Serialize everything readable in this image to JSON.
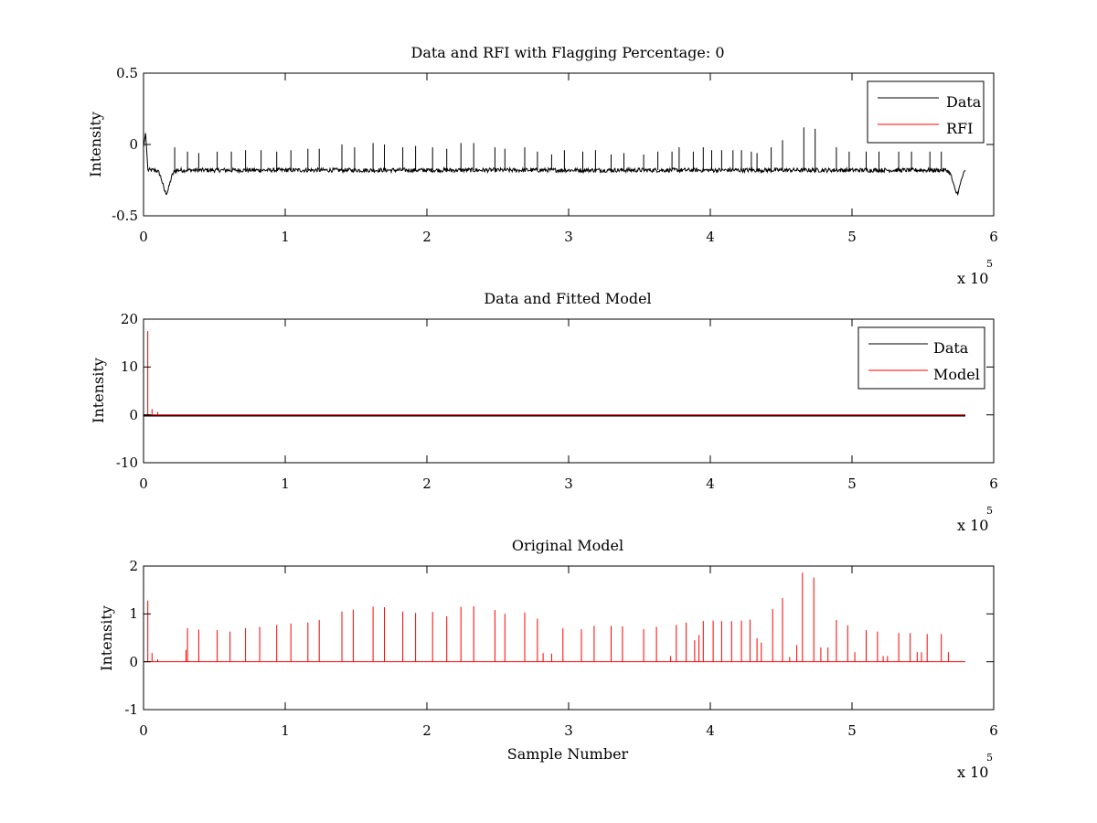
{
  "chart_data": [
    {
      "type": "line",
      "title": "Data and RFI with Flagging Percentage: 0",
      "xlabel": "",
      "ylabel": "Intensity",
      "xlim": [
        0,
        6
      ],
      "ylim": [
        -0.5,
        0.5
      ],
      "xticks": [
        0,
        1,
        2,
        3,
        4,
        5,
        6
      ],
      "yticks": [
        -0.5,
        0,
        0.5
      ],
      "xtick_labels": [
        "0",
        "1",
        "2",
        "3",
        "4",
        "5",
        "6"
      ],
      "ytick_labels": [
        "-0.5",
        "0",
        "0.5"
      ],
      "x_exponent": {
        "base": "x 10",
        "power": "5"
      },
      "grid": false,
      "legend_position": "top-right",
      "series": [
        {
          "name": "Data",
          "color": "#000000"
        },
        {
          "name": "RFI",
          "color": "#ff0000"
        }
      ],
      "data_profile": {
        "x_end": 5.8,
        "baseline": -0.18,
        "start_values": [
          [
            0,
            -0.02
          ],
          [
            0.015,
            0.08
          ],
          [
            0.03,
            -0.17
          ]
        ],
        "dips": [
          {
            "x": 0.16,
            "y": -0.34
          },
          {
            "x": 5.74,
            "y": -0.34
          }
        ],
        "spikes": [
          [
            0.22,
            -0.02
          ],
          [
            0.31,
            -0.05
          ],
          [
            0.39,
            -0.06
          ],
          [
            0.52,
            -0.05
          ],
          [
            0.62,
            -0.05
          ],
          [
            0.72,
            -0.04
          ],
          [
            0.83,
            -0.04
          ],
          [
            0.94,
            -0.05
          ],
          [
            1.04,
            -0.04
          ],
          [
            1.16,
            -0.03
          ],
          [
            1.24,
            -0.03
          ],
          [
            1.4,
            0.0
          ],
          [
            1.49,
            -0.02
          ],
          [
            1.62,
            0.01
          ],
          [
            1.7,
            0.0
          ],
          [
            1.83,
            -0.02
          ],
          [
            1.92,
            -0.01
          ],
          [
            2.04,
            -0.02
          ],
          [
            2.14,
            -0.03
          ],
          [
            2.24,
            0.01
          ],
          [
            2.33,
            0.01
          ],
          [
            2.48,
            -0.02
          ],
          [
            2.55,
            -0.03
          ],
          [
            2.69,
            -0.02
          ],
          [
            2.78,
            -0.05
          ],
          [
            2.88,
            -0.07
          ],
          [
            2.97,
            -0.04
          ],
          [
            3.1,
            -0.05
          ],
          [
            3.19,
            -0.04
          ],
          [
            3.3,
            -0.07
          ],
          [
            3.39,
            -0.06
          ],
          [
            3.53,
            -0.07
          ],
          [
            3.63,
            -0.05
          ],
          [
            3.73,
            -0.05
          ],
          [
            3.78,
            -0.02
          ],
          [
            3.88,
            -0.05
          ],
          [
            3.95,
            -0.02
          ],
          [
            4.01,
            -0.04
          ],
          [
            4.08,
            -0.04
          ],
          [
            4.16,
            -0.04
          ],
          [
            4.22,
            -0.04
          ],
          [
            4.29,
            -0.05
          ],
          [
            4.33,
            -0.06
          ],
          [
            4.43,
            -0.02
          ],
          [
            4.51,
            0.03
          ],
          [
            4.66,
            0.12
          ],
          [
            4.74,
            0.11
          ],
          [
            4.89,
            -0.02
          ],
          [
            4.98,
            -0.05
          ],
          [
            5.1,
            -0.05
          ],
          [
            5.19,
            -0.05
          ],
          [
            5.33,
            -0.05
          ],
          [
            5.42,
            -0.05
          ],
          [
            5.55,
            -0.05
          ],
          [
            5.63,
            -0.05
          ]
        ]
      }
    },
    {
      "type": "line",
      "title": "Data and Fitted Model",
      "xlabel": "",
      "ylabel": "Intensity",
      "xlim": [
        0,
        6
      ],
      "ylim": [
        -10,
        20
      ],
      "xticks": [
        0,
        1,
        2,
        3,
        4,
        5,
        6
      ],
      "yticks": [
        -10,
        0,
        10,
        20
      ],
      "xtick_labels": [
        "0",
        "1",
        "2",
        "3",
        "4",
        "5",
        "6"
      ],
      "ytick_labels": [
        "-10",
        "0",
        "10",
        "20"
      ],
      "x_exponent": {
        "base": "x 10",
        "power": "5"
      },
      "grid": false,
      "legend_position": "top-right",
      "series": [
        {
          "name": "Data",
          "color": "#000000"
        },
        {
          "name": "Model",
          "color": "#ff0000"
        }
      ],
      "data_profile": {
        "x_end": 5.8,
        "baseline": -0.2,
        "model_peak": {
          "x": 0.03,
          "y": 17.5
        },
        "model_small_peaks": [
          [
            0.06,
            1.2
          ],
          [
            0.1,
            0.6
          ]
        ]
      }
    },
    {
      "type": "line",
      "title": "Original Model",
      "xlabel": "Sample Number",
      "ylabel": "Intensity",
      "xlim": [
        0,
        6
      ],
      "ylim": [
        -1,
        2
      ],
      "xticks": [
        0,
        1,
        2,
        3,
        4,
        5,
        6
      ],
      "yticks": [
        -1,
        0,
        1,
        2
      ],
      "xtick_labels": [
        "0",
        "1",
        "2",
        "3",
        "4",
        "5",
        "6"
      ],
      "ytick_labels": [
        "-1",
        "0",
        "1",
        "2"
      ],
      "x_exponent": {
        "base": "x 10",
        "power": "5"
      },
      "grid": false,
      "series": [
        {
          "color": "#ff0000"
        }
      ],
      "data_profile": {
        "x_end": 5.8,
        "baseline": 0,
        "spikes": [
          [
            0.03,
            1.28
          ],
          [
            0.06,
            0.18
          ],
          [
            0.1,
            0.05
          ],
          [
            0.3,
            0.25
          ],
          [
            0.31,
            0.7
          ],
          [
            0.39,
            0.67
          ],
          [
            0.52,
            0.66
          ],
          [
            0.61,
            0.63
          ],
          [
            0.72,
            0.7
          ],
          [
            0.82,
            0.73
          ],
          [
            0.94,
            0.77
          ],
          [
            1.04,
            0.8
          ],
          [
            1.16,
            0.82
          ],
          [
            1.24,
            0.87
          ],
          [
            1.4,
            1.05
          ],
          [
            1.48,
            1.09
          ],
          [
            1.62,
            1.15
          ],
          [
            1.7,
            1.14
          ],
          [
            1.83,
            1.05
          ],
          [
            1.92,
            1.02
          ],
          [
            2.04,
            1.04
          ],
          [
            2.14,
            0.95
          ],
          [
            2.24,
            1.15
          ],
          [
            2.33,
            1.16
          ],
          [
            2.48,
            1.08
          ],
          [
            2.55,
            1.0
          ],
          [
            2.69,
            1.03
          ],
          [
            2.78,
            0.9
          ],
          [
            2.82,
            0.18
          ],
          [
            2.88,
            0.17
          ],
          [
            2.96,
            0.7
          ],
          [
            3.09,
            0.68
          ],
          [
            3.18,
            0.75
          ],
          [
            3.3,
            0.75
          ],
          [
            3.38,
            0.74
          ],
          [
            3.53,
            0.68
          ],
          [
            3.62,
            0.73
          ],
          [
            3.72,
            0.12
          ],
          [
            3.76,
            0.77
          ],
          [
            3.83,
            0.82
          ],
          [
            3.89,
            0.45
          ],
          [
            3.92,
            0.56
          ],
          [
            3.95,
            0.85
          ],
          [
            4.02,
            0.86
          ],
          [
            4.08,
            0.85
          ],
          [
            4.15,
            0.85
          ],
          [
            4.22,
            0.86
          ],
          [
            4.28,
            0.88
          ],
          [
            4.33,
            0.49
          ],
          [
            4.36,
            0.4
          ],
          [
            4.44,
            1.1
          ],
          [
            4.51,
            1.33
          ],
          [
            4.56,
            0.1
          ],
          [
            4.61,
            0.35
          ],
          [
            4.65,
            1.86
          ],
          [
            4.73,
            1.76
          ],
          [
            4.78,
            0.3
          ],
          [
            4.83,
            0.3
          ],
          [
            4.89,
            0.87
          ],
          [
            4.97,
            0.76
          ],
          [
            5.02,
            0.2
          ],
          [
            5.1,
            0.66
          ],
          [
            5.18,
            0.63
          ],
          [
            5.22,
            0.12
          ],
          [
            5.25,
            0.12
          ],
          [
            5.33,
            0.6
          ],
          [
            5.41,
            0.6
          ],
          [
            5.46,
            0.2
          ],
          [
            5.49,
            0.2
          ],
          [
            5.53,
            0.58
          ],
          [
            5.63,
            0.58
          ],
          [
            5.68,
            0.2
          ]
        ]
      }
    }
  ]
}
